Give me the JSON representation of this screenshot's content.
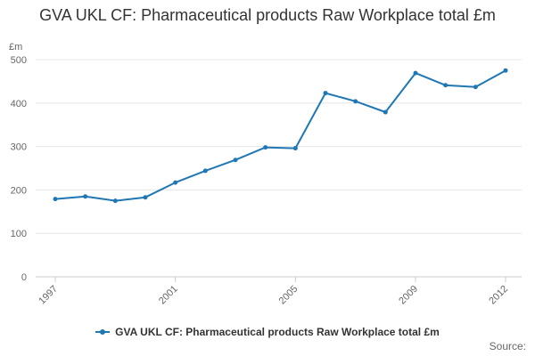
{
  "chart_data": {
    "type": "line",
    "title": "GVA UKL CF: Pharmaceutical products Raw Workplace total £m",
    "unit_label": "£m",
    "xlabel": "",
    "ylabel": "",
    "x": [
      1997,
      1998,
      1999,
      2000,
      2001,
      2002,
      2003,
      2004,
      2005,
      2006,
      2007,
      2008,
      2009,
      2010,
      2011,
      2012
    ],
    "x_ticks": [
      "1997",
      "2001",
      "2005",
      "2009",
      "2012"
    ],
    "y_ticks": [
      "0",
      "100",
      "200",
      "300",
      "400",
      "500"
    ],
    "ylim": [
      0,
      500
    ],
    "grid": true,
    "legend_position": "bottom",
    "series": [
      {
        "name": "GVA UKL CF: Pharmaceutical products Raw Workplace total £m",
        "values": [
          179,
          185,
          175,
          183,
          217,
          244,
          269,
          298,
          296,
          423,
          404,
          379,
          469,
          441,
          437,
          475
        ],
        "color": "#1f77b4"
      }
    ]
  },
  "credits": "Source:"
}
